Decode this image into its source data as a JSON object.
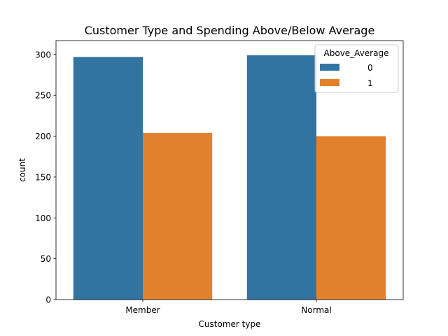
{
  "chart_data": {
    "type": "bar",
    "title": "Customer Type and Spending Above/Below Average",
    "xlabel": "Customer type",
    "ylabel": "count",
    "categories": [
      "Member",
      "Normal"
    ],
    "series": [
      {
        "name": "0",
        "values": [
          297,
          299
        ],
        "color": "#3274a1"
      },
      {
        "name": "1",
        "values": [
          204,
          200
        ],
        "color": "#e1812c"
      }
    ],
    "ylim": [
      0,
      317
    ],
    "yticks": [
      0,
      50,
      100,
      150,
      200,
      250,
      300
    ],
    "legend": {
      "title": "Above_Average",
      "placement": "top-right"
    },
    "grid": false
  }
}
